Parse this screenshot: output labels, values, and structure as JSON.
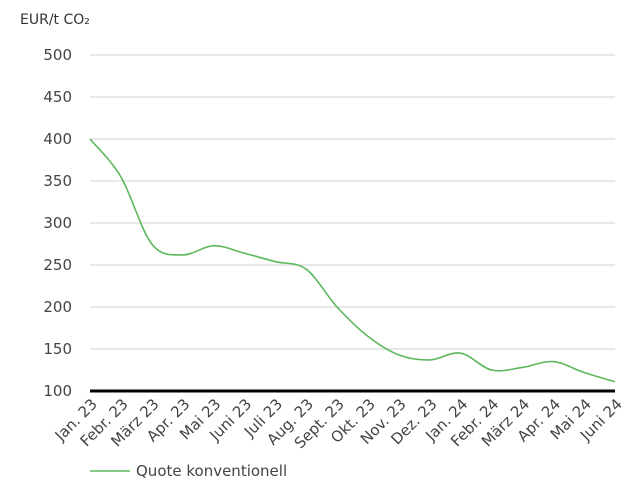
{
  "chart_data": {
    "type": "line",
    "y_label": "EUR/t CO₂",
    "categories": [
      "Jan. 23",
      "Febr. 23",
      "März 23",
      "Apr. 23",
      "Mai 23",
      "Juni 23",
      "Juli 23",
      "Aug. 23",
      "Sept. 23",
      "Okt. 23",
      "Nov. 23",
      "Dez. 23",
      "Jan. 24",
      "Febr. 24",
      "März 24",
      "Apr. 24",
      "Mai 24",
      "Juni 24"
    ],
    "series": [
      {
        "name": "Quote konventionell",
        "color": "#5cb85c",
        "values": [
          400,
          355,
          275,
          262,
          273,
          264,
          254,
          245,
          200,
          165,
          143,
          137,
          145,
          125,
          128,
          135,
          122,
          111
        ]
      }
    ],
    "ylim": [
      100,
      500
    ],
    "yticks": [
      100,
      150,
      200,
      250,
      300,
      350,
      400,
      450,
      500
    ],
    "grid": true
  }
}
